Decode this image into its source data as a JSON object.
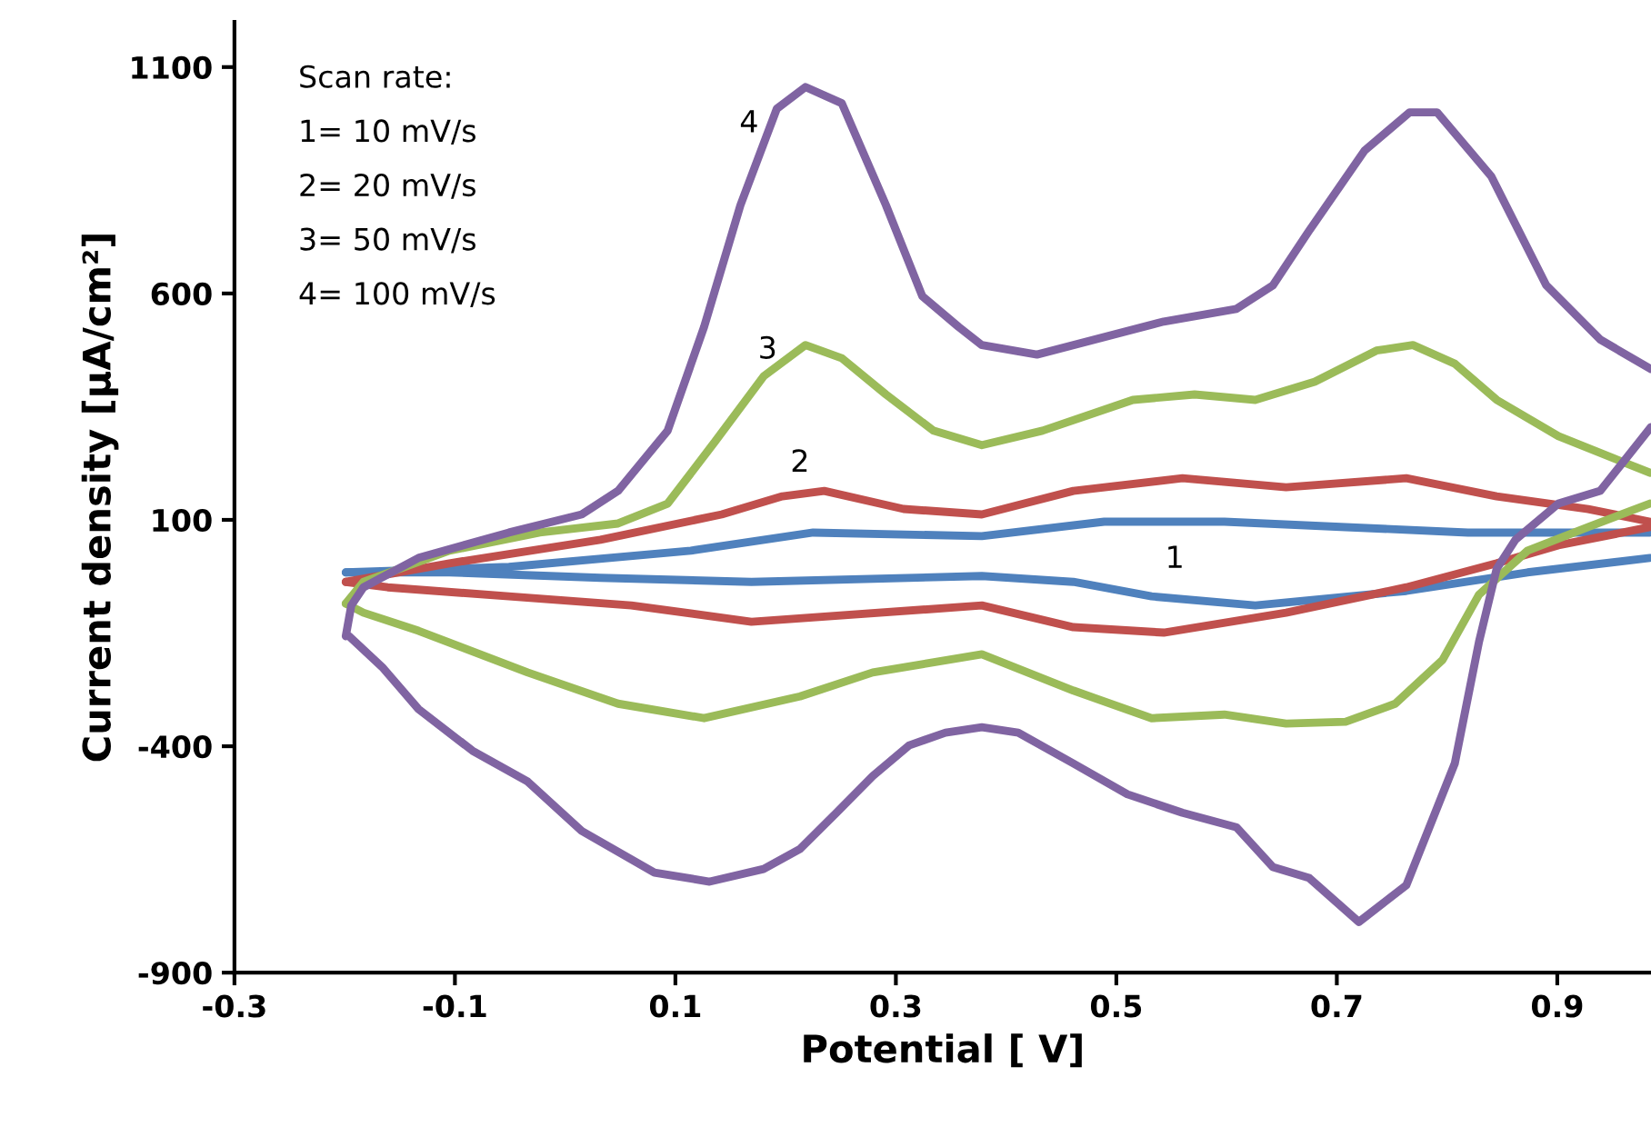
{
  "chart_data": {
    "type": "line",
    "xlabel": "Potential [ V]",
    "ylabel": "Current density [μA/cm²]",
    "xlim": [
      -0.3,
      0.985
    ],
    "xticks": [
      -0.3,
      -0.1,
      0.1,
      0.3,
      0.5,
      0.7,
      0.9
    ],
    "ylim": [
      -900,
      1200
    ],
    "yticks": [
      -900,
      -400,
      100,
      600,
      1100
    ],
    "grid": false,
    "marker": "none",
    "line_style": "solid",
    "series": [
      {
        "color": "#4f81bd",
        "x": [
          -0.199,
          -0.051,
          0.114,
          0.225,
          0.378,
          0.489,
          0.598,
          0.708,
          0.819,
          0.984
        ],
        "values": [
          -16,
          -4,
          32,
          72,
          64,
          96,
          96,
          84,
          72,
          72
        ]
      },
      {
        "color": "#4f81bd",
        "x": [
          0.984,
          0.873,
          0.763,
          0.626,
          0.532,
          0.461,
          0.378,
          0.169,
          0.032,
          -0.105,
          -0.199
        ],
        "values": [
          16,
          -16,
          -57,
          -89,
          -69,
          -37,
          -24,
          -37,
          -28,
          -16,
          -16
        ]
      },
      {
        "color": "#c0504d",
        "x": [
          -0.199,
          -0.105,
          0.032,
          0.142,
          0.197,
          0.235,
          0.307,
          0.378,
          0.461,
          0.56,
          0.654,
          0.763,
          0.845,
          0.928,
          0.984
        ],
        "values": [
          -37,
          4,
          56,
          112,
          152,
          164,
          124,
          112,
          164,
          192,
          172,
          192,
          152,
          124,
          96
        ]
      },
      {
        "color": "#c0504d",
        "x": [
          0.984,
          0.901,
          0.845,
          0.763,
          0.654,
          0.543,
          0.461,
          0.378,
          0.169,
          0.06,
          -0.051,
          -0.161,
          -0.199
        ],
        "values": [
          84,
          44,
          4,
          -49,
          -105,
          -149,
          -137,
          -89,
          -125,
          -89,
          -69,
          -49,
          -37
        ]
      },
      {
        "color": "#9bbb59",
        "x": [
          -0.199,
          -0.183,
          -0.105,
          -0.023,
          0.048,
          0.093,
          0.136,
          0.18,
          0.218,
          0.251,
          0.291,
          0.334,
          0.378,
          0.433,
          0.515,
          0.571,
          0.626,
          0.68,
          0.736,
          0.769,
          0.807,
          0.845,
          0.901,
          0.984
        ],
        "values": [
          -85,
          -37,
          32,
          72,
          92,
          136,
          273,
          417,
          486,
          457,
          377,
          297,
          265,
          297,
          365,
          377,
          365,
          405,
          474,
          486,
          445,
          365,
          285,
          204
        ]
      },
      {
        "color": "#9bbb59",
        "x": [
          0.984,
          0.928,
          0.873,
          0.829,
          0.796,
          0.753,
          0.708,
          0.654,
          0.598,
          0.532,
          0.461,
          0.378,
          0.279,
          0.213,
          0.126,
          0.048,
          -0.034,
          -0.133,
          -0.183,
          -0.199
        ],
        "values": [
          136,
          84,
          32,
          -65,
          -209,
          -306,
          -346,
          -350,
          -330,
          -338,
          -277,
          -197,
          -237,
          -290,
          -338,
          -306,
          -237,
          -145,
          -105,
          -85
        ]
      },
      {
        "color": "#8064a2",
        "x": [
          -0.199,
          -0.194,
          -0.183,
          -0.133,
          -0.051,
          0.015,
          0.048,
          0.093,
          0.126,
          0.159,
          0.192,
          0.218,
          0.251,
          0.291,
          0.324,
          0.357,
          0.378,
          0.428,
          0.543,
          0.609,
          0.642,
          0.675,
          0.725,
          0.766,
          0.791,
          0.84,
          0.89,
          0.939,
          0.985
        ],
        "values": [
          -157,
          -89,
          -49,
          16,
          72,
          112,
          164,
          297,
          526,
          795,
          1008,
          1056,
          1020,
          795,
          594,
          526,
          486,
          465,
          538,
          566,
          618,
          739,
          915,
          1000,
          1000,
          859,
          618,
          498,
          433
        ]
      },
      {
        "color": "#8064a2",
        "x": [
          0.985,
          0.939,
          0.901,
          0.862,
          0.845,
          0.829,
          0.807,
          0.763,
          0.72,
          0.675,
          0.642,
          0.609,
          0.56,
          0.51,
          0.461,
          0.411,
          0.378,
          0.345,
          0.312,
          0.279,
          0.246,
          0.213,
          0.18,
          0.131,
          0.081,
          0.015,
          -0.034,
          -0.084,
          -0.133,
          -0.166,
          -0.196
        ],
        "values": [
          305,
          164,
          136,
          56,
          -8,
          -169,
          -438,
          -707,
          -788,
          -691,
          -667,
          -579,
          -547,
          -506,
          -438,
          -370,
          -358,
          -370,
          -398,
          -466,
          -547,
          -627,
          -671,
          -699,
          -679,
          -587,
          -478,
          -410,
          -318,
          -225,
          -157
        ]
      }
    ],
    "annotations": [
      {
        "text": "1",
        "x": 0.553,
        "y": 96
      },
      {
        "text": "2",
        "x": 0.213,
        "y": 158
      },
      {
        "text": "3",
        "x": 0.218,
        "y": 486
      },
      {
        "text": "4",
        "x": 0.192,
        "y": 1008
      },
      "Scan rate:",
      "1= 10 mV/s",
      "2= 20 mV/s",
      "3= 50 mV/s",
      "4= 100 mV/s"
    ]
  }
}
